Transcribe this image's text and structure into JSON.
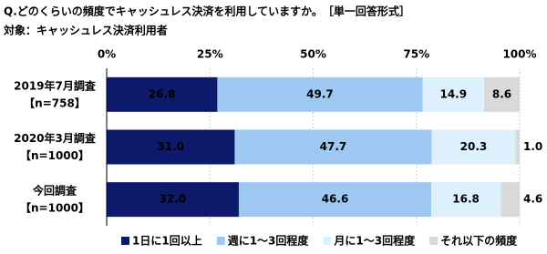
{
  "chart_data": {
    "type": "stacked-bar-horizontal",
    "title": "Q.どのくらいの頻度でキャッシュレス決済を利用していますか。　［単一回答形式］",
    "subtitle": "対象：キャッシュレス決済利用者",
    "categories": [
      "2019年7月調査",
      "2020年3月調査",
      "今回調査"
    ],
    "category_notes": [
      "【n=758】",
      "【n=1000】",
      "【n=1000】"
    ],
    "xlim": [
      0,
      100
    ],
    "xticks": [
      {
        "value": 0,
        "label": "0%"
      },
      {
        "value": 25,
        "label": "25%"
      },
      {
        "value": 50,
        "label": "50%"
      },
      {
        "value": 75,
        "label": "75%"
      },
      {
        "value": 100,
        "label": "100%"
      }
    ],
    "grid": true,
    "legend": "bottom",
    "series": [
      {
        "name": "1日に1回以上",
        "color": "#0d1a6b",
        "label_color": "#ffffff",
        "values": [
          26.8,
          31.0,
          32.0
        ],
        "value_labels": [
          "26.8",
          "31.0",
          "32.0"
        ]
      },
      {
        "name": "週に1～3回程度",
        "color": "#9ec8f2",
        "label_color": "#000000",
        "values": [
          49.7,
          47.7,
          46.6
        ],
        "value_labels": [
          "49.7",
          "47.7",
          "46.6"
        ]
      },
      {
        "name": "月に1～3回程度",
        "color": "#dcf0fd",
        "label_color": "#000000",
        "values": [
          14.9,
          20.3,
          16.8
        ],
        "value_labels": [
          "14.9",
          "20.3",
          "16.8"
        ]
      },
      {
        "name": "それ以下の頻度",
        "color": "#d9d9d9",
        "label_color": "#000000",
        "values": [
          8.6,
          1.0,
          4.6
        ],
        "value_labels": [
          "8.6",
          "1.0",
          "4.6"
        ]
      }
    ]
  }
}
